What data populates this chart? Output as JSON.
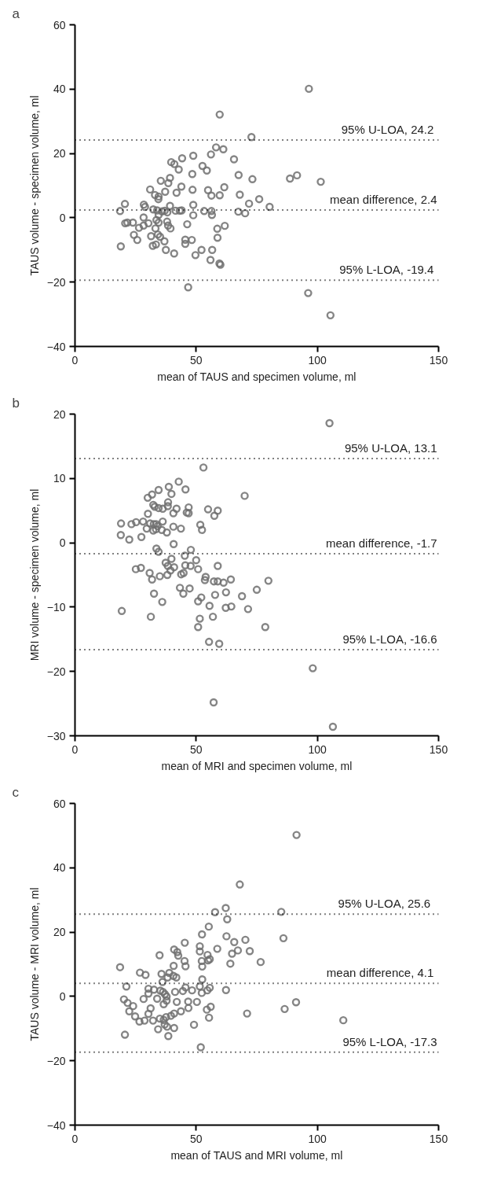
{
  "chart_data": [
    {
      "type": "scatter",
      "title": "a",
      "xlabel": "mean of TAUS and specimen volume, ml",
      "ylabel": "TAUS volume - specimen volume, ml",
      "xlim": [
        0,
        150
      ],
      "ylim": [
        -40,
        60
      ],
      "xticks": [
        0,
        50,
        100,
        150
      ],
      "yticks": [
        -40,
        -20,
        0,
        20,
        40,
        60
      ],
      "grid": false,
      "marker": "circle",
      "series": [
        {
          "color": "#707070",
          "x": [
            96.5,
            59.7,
            72.8,
            58.2,
            61.2,
            65.6,
            44.2,
            48.8,
            56.1,
            39.7,
            41.0,
            42.8,
            52.6,
            54.4,
            48.4,
            67.5,
            73.2,
            88.7,
            91.6,
            101.4,
            35.4,
            39.2,
            38.5,
            43.9,
            61.6,
            48.5,
            54.9,
            31.0,
            37.2,
            41.9,
            33.0,
            34.5,
            34.4,
            56.3,
            59.7,
            68.0,
            76.0,
            71.8,
            80.3,
            20.6,
            28.4,
            28.9,
            39.2,
            48.8,
            18.6,
            32.3,
            33.9,
            35.9,
            37.0,
            38.1,
            41.5,
            43.2,
            44.0,
            53.3,
            56.3,
            67.4,
            70.2,
            56.5,
            48.8,
            28.3,
            34.5,
            33.6,
            34.5,
            38.0,
            38.4,
            39.4,
            20.7,
            21.6,
            23.9,
            30.3,
            28.3,
            26.4,
            33.2,
            46.3,
            61.8,
            58.7,
            24.3,
            25.7,
            31.4,
            34.2,
            35.1,
            36.9,
            45.5,
            45.5,
            48.2,
            58.8,
            32.1,
            33.4,
            18.9,
            37.5,
            40.9,
            52.2,
            56.6,
            49.7,
            55.9,
            59.6,
            60.0,
            46.7,
            96.2,
            105.4
          ],
          "values": [
            40.1,
            32.1,
            25.1,
            21.9,
            21.3,
            18.2,
            18.5,
            19.3,
            19.7,
            17.3,
            16.7,
            15.0,
            16.1,
            14.7,
            13.6,
            13.3,
            12.0,
            12.2,
            13.2,
            11.2,
            11.5,
            12.4,
            10.8,
            9.7,
            9.5,
            8.7,
            8.6,
            8.8,
            8.1,
            7.8,
            7.1,
            6.6,
            5.8,
            6.9,
            7.0,
            7.2,
            5.8,
            4.4,
            3.4,
            4.3,
            4.1,
            3.4,
            3.7,
            4.0,
            2.1,
            2.6,
            2.3,
            2.0,
            2.2,
            1.7,
            2.2,
            2.2,
            2.3,
            2.1,
            2.1,
            1.9,
            1.4,
            0.9,
            0.8,
            0.1,
            0.9,
            -0.7,
            -1.5,
            -1.2,
            -2.4,
            -3.3,
            -1.7,
            -1.5,
            -1.5,
            -1.7,
            -2.4,
            -3.1,
            -3.3,
            -2.0,
            -2.5,
            -3.4,
            -5.3,
            -6.9,
            -5.7,
            -5.2,
            -5.9,
            -7.3,
            -6.8,
            -8.1,
            -6.9,
            -6.2,
            -8.7,
            -8.3,
            -8.9,
            -10.0,
            -11.1,
            -10.0,
            -10.0,
            -11.6,
            -13.1,
            -14.2,
            -14.6,
            -21.6,
            -23.4,
            -30.3
          ]
        }
      ],
      "ref_lines": [
        {
          "axis": "y",
          "value": 24.2,
          "label": "95%  U-LOA, 24.2",
          "color": "#000000",
          "line_style": "dotted"
        },
        {
          "axis": "y",
          "value": 2.4,
          "label": "mean difference, 2.4",
          "color": "#000000",
          "line_style": "dotted"
        },
        {
          "axis": "y",
          "value": -19.4,
          "label": "95%  L-LOA, -19.4",
          "color": "#000000",
          "line_style": "dotted"
        }
      ]
    },
    {
      "type": "scatter",
      "title": "b",
      "xlabel": "mean of MRI and specimen volume, ml",
      "ylabel": "MRI volume - specimen volume, ml",
      "xlim": [
        0,
        150
      ],
      "ylim": [
        -30,
        20
      ],
      "xticks": [
        0,
        50,
        100,
        150
      ],
      "yticks": [
        -30,
        -20,
        -10,
        0,
        10,
        20
      ],
      "grid": false,
      "marker": "circle",
      "series": [
        {
          "color": "#707070",
          "x": [
            105.0,
            53.0,
            42.8,
            38.7,
            45.6,
            34.5,
            39.8,
            31.8,
            30.0,
            70.0,
            38.4,
            32.3,
            32.9,
            34.5,
            36.2,
            38.3,
            41.9,
            40.6,
            46.9,
            46.1,
            46.9,
            54.9,
            58.9,
            57.5,
            30.1,
            19.0,
            23.3,
            25.2,
            28.1,
            31.0,
            32.5,
            33.5,
            34.1,
            36.2,
            29.6,
            32.3,
            33.4,
            35.8,
            37.9,
            40.6,
            43.7,
            51.7,
            52.4,
            18.9,
            22.4,
            27.4,
            40.7,
            33.6,
            34.5,
            47.8,
            45.3,
            39.8,
            50.0,
            37.4,
            38.3,
            40.9,
            45.5,
            47.7,
            58.9,
            25.1,
            27.2,
            39.4,
            30.8,
            31.8,
            35.0,
            38.1,
            43.8,
            44.8,
            50.8,
            53.9,
            53.6,
            57.3,
            58.9,
            61.3,
            64.3,
            79.8,
            43.3,
            47.3,
            75.0,
            32.6,
            44.7,
            62.3,
            57.8,
            68.9,
            52.1,
            50.8,
            36.0,
            55.5,
            62.2,
            64.5,
            71.4,
            19.3,
            51.5,
            56.9,
            31.3,
            50.8,
            78.5,
            55.3,
            59.5,
            98.1,
            57.2,
            106.4
          ],
          "values": [
            18.6,
            11.7,
            9.5,
            8.7,
            8.3,
            8.2,
            7.6,
            7.5,
            7.0,
            7.3,
            6.3,
            5.9,
            5.6,
            5.4,
            5.3,
            5.7,
            5.3,
            4.6,
            5.5,
            4.7,
            4.6,
            5.2,
            5.0,
            4.2,
            4.5,
            3.0,
            2.9,
            3.2,
            3.3,
            3.0,
            2.9,
            2.9,
            2.6,
            3.3,
            2.2,
            1.9,
            2.1,
            2.0,
            1.6,
            2.5,
            2.2,
            2.8,
            2.0,
            1.2,
            0.5,
            0.9,
            -0.2,
            -0.9,
            -1.4,
            -1.1,
            -2.0,
            -2.5,
            -2.7,
            -3.1,
            -3.6,
            -3.8,
            -3.5,
            -3.6,
            -3.6,
            -4.1,
            -3.9,
            -4.3,
            -4.7,
            -5.7,
            -5.2,
            -5.0,
            -4.9,
            -4.7,
            -4.1,
            -5.3,
            -5.8,
            -6.0,
            -6.0,
            -6.2,
            -5.7,
            -5.9,
            -7.0,
            -7.1,
            -7.3,
            -7.9,
            -7.9,
            -7.7,
            -8.1,
            -8.3,
            -8.5,
            -9.1,
            -9.2,
            -9.8,
            -10.1,
            -9.9,
            -10.3,
            -10.6,
            -11.8,
            -11.5,
            -11.5,
            -13.1,
            -13.1,
            -15.4,
            -15.7,
            -19.5,
            -24.8,
            -28.6
          ]
        }
      ],
      "ref_lines": [
        {
          "axis": "y",
          "value": 13.1,
          "label": "95% U-LOA, 13.1",
          "color": "#000000",
          "line_style": "dotted"
        },
        {
          "axis": "y",
          "value": -1.7,
          "label": "mean difference, -1.7",
          "color": "#000000",
          "line_style": "dotted"
        },
        {
          "axis": "y",
          "value": -16.6,
          "label": "95% L-LOA, -16.6",
          "color": "#000000",
          "line_style": "dotted"
        }
      ]
    },
    {
      "type": "scatter",
      "title": "c",
      "xlabel": "mean of TAUS and MRI volume, ml",
      "ylabel": "TAUS volume - MRI volume, ml",
      "xlim": [
        0,
        150
      ],
      "ylim": [
        -40,
        60
      ],
      "xticks": [
        0,
        50,
        100,
        150
      ],
      "yticks": [
        -40,
        -20,
        0,
        20,
        40,
        60
      ],
      "grid": false,
      "marker": "circle",
      "series": [
        {
          "color": "#707070",
          "x": [
            91.4,
            68.0,
            62.2,
            57.8,
            85.1,
            62.8,
            55.2,
            52.4,
            62.5,
            86.0,
            70.3,
            65.7,
            45.3,
            51.5,
            58.7,
            51.5,
            40.9,
            42.2,
            34.9,
            42.6,
            54.7,
            67.2,
            72.1,
            64.8,
            54.9,
            55.6,
            52.3,
            45.2,
            76.6,
            64.1,
            40.7,
            45.6,
            52.5,
            18.6,
            26.8,
            29.1,
            35.7,
            38.9,
            40.6,
            41.8,
            38.2,
            52.5,
            36.1,
            21.2,
            51.5,
            30.3,
            32.6,
            35.2,
            55.6,
            54.6,
            62.3,
            44.5,
            48.3,
            41.3,
            45.6,
            36.3,
            37.1,
            37.8,
            52.3,
            30.3,
            33.9,
            37.8,
            28.3,
            20.2,
            21.7,
            42.0,
            46.7,
            50.3,
            91.2,
            36.6,
            24.0,
            31.2,
            56.0,
            46.8,
            54.4,
            86.5,
            22.4,
            43.7,
            30.3,
            40.9,
            39.6,
            71.0,
            24.8,
            37.6,
            55.3,
            35.0,
            32.2,
            36.6,
            26.6,
            28.7,
            110.7,
            37.0,
            49.1,
            38.0,
            40.9,
            34.3,
            20.6,
            38.5,
            51.9
          ],
          "values": [
            50.2,
            34.8,
            27.5,
            26.2,
            26.3,
            24.0,
            21.7,
            19.3,
            18.7,
            18.1,
            17.6,
            16.9,
            16.7,
            15.6,
            14.8,
            14.0,
            14.6,
            13.8,
            12.8,
            12.7,
            12.9,
            14.3,
            14.1,
            13.3,
            11.2,
            11.6,
            11.0,
            11.0,
            10.7,
            10.2,
            9.5,
            9.4,
            9.3,
            9.1,
            7.4,
            6.7,
            7.0,
            7.3,
            6.4,
            5.9,
            5.9,
            5.3,
            4.5,
            3.1,
            3.1,
            2.4,
            2.1,
            1.8,
            2.7,
            1.9,
            2.0,
            1.7,
            1.9,
            1.4,
            2.8,
            1.4,
            0.7,
            0.0,
            1.1,
            0.9,
            -0.7,
            -1.3,
            -0.8,
            -0.9,
            -2.0,
            -1.7,
            -1.6,
            -1.7,
            -1.8,
            -2.4,
            -3.0,
            -3.7,
            -3.2,
            -3.6,
            -4.1,
            -3.9,
            -4.6,
            -4.6,
            -5.4,
            -5.3,
            -6.0,
            -5.3,
            -6.2,
            -6.4,
            -6.6,
            -6.9,
            -7.5,
            -7.3,
            -7.8,
            -7.5,
            -7.4,
            -8.7,
            -8.8,
            -9.4,
            -9.8,
            -10.2,
            -11.9,
            -12.3,
            -15.8
          ]
        }
      ],
      "ref_lines": [
        {
          "axis": "y",
          "value": 25.6,
          "label": "95%  U-LOA,  25.6",
          "color": "#000000",
          "line_style": "dotted"
        },
        {
          "axis": "y",
          "value": 4.1,
          "label": "mean difference,  4.1",
          "color": "#000000",
          "line_style": "dotted"
        },
        {
          "axis": "y",
          "value": -17.3,
          "label": "95% L-LOA, -17.3",
          "color": "#000000",
          "line_style": "dotted"
        }
      ]
    }
  ]
}
